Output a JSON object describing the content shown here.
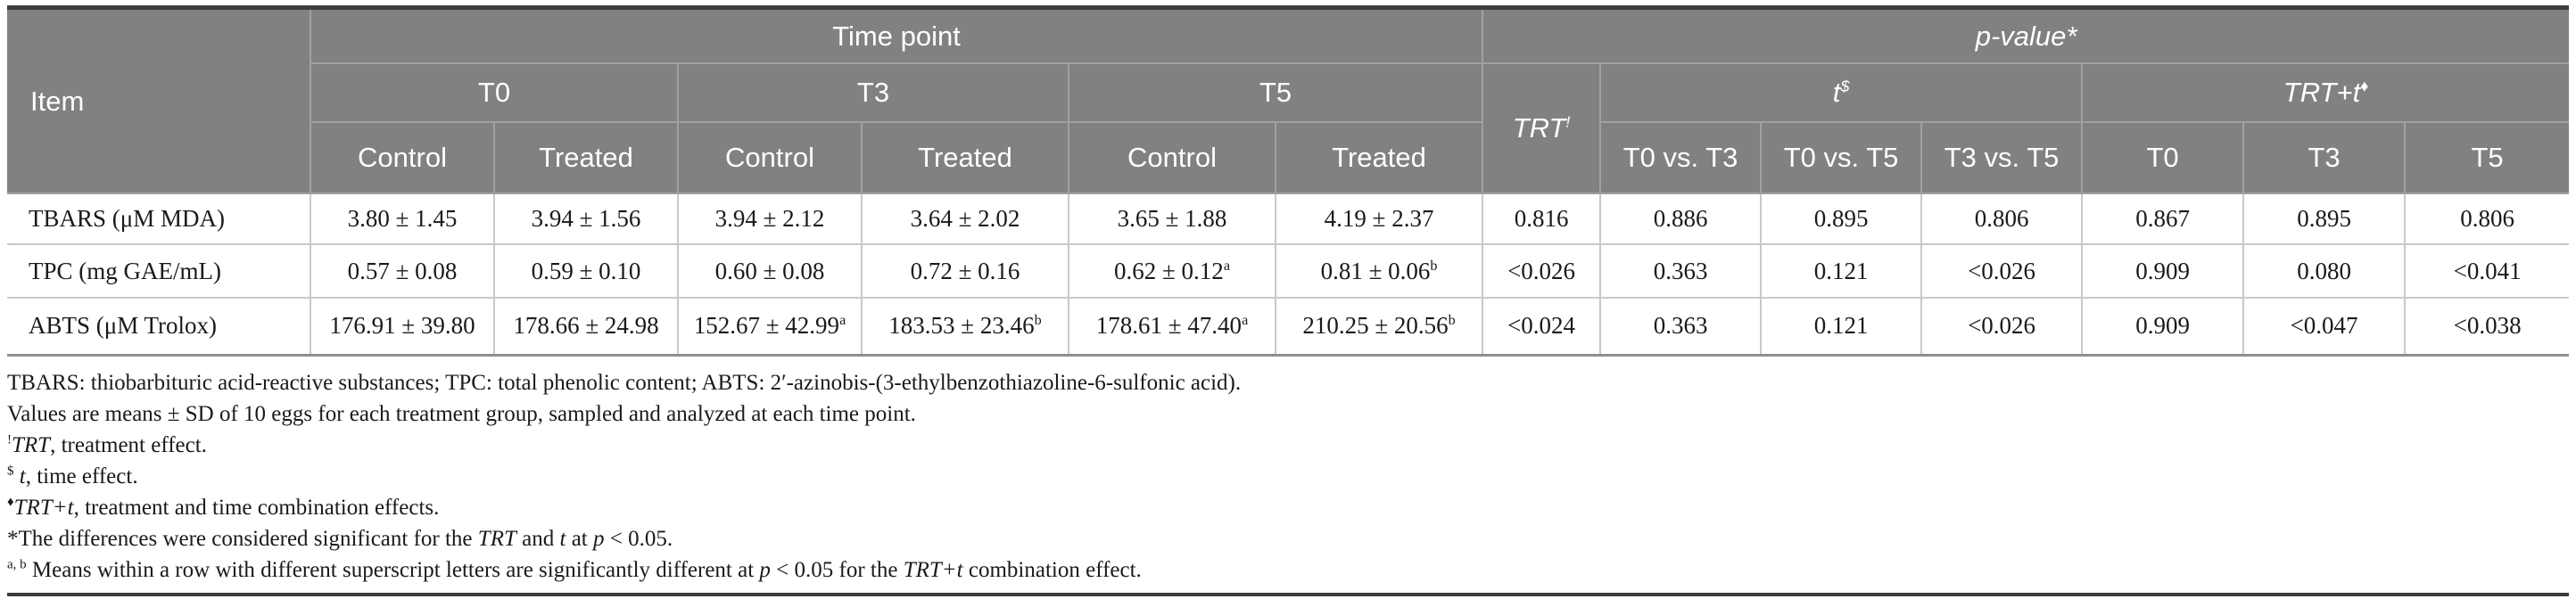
{
  "colors": {
    "header_bg": "#818181",
    "header_text": "#ffffff",
    "header_border": "#a1a1a1",
    "body_border": "#c9c9c9",
    "body_text": "#1a1a1a",
    "rule_dark": "#3c3c3c",
    "table_bottom": "#8f8f8f",
    "page_bg": "#ffffff"
  },
  "header": {
    "item": "Item",
    "time_point": "Time point",
    "p_value": {
      "text": "p-value",
      "sup": "*"
    },
    "t0": "T0",
    "t3": "T3",
    "t5": "T5",
    "control": "Control",
    "treated": "Treated",
    "trt": {
      "text": "TRT",
      "sup": "!"
    },
    "t": {
      "text": "t",
      "sup": "$"
    },
    "trt_t": {
      "text": "TRT+t",
      "sup": "♦"
    },
    "comparisons": [
      "T0 vs. T3",
      "T0 vs. T5",
      "T3 vs. T5"
    ],
    "combo_cols": [
      "T0",
      "T3",
      "T5"
    ]
  },
  "rows": [
    {
      "item": "TBARS (μM MDA)",
      "values": [
        {
          "v": "3.80 ± 1.45",
          "sup": ""
        },
        {
          "v": "3.94 ± 1.56",
          "sup": ""
        },
        {
          "v": "3.94 ± 2.12",
          "sup": ""
        },
        {
          "v": "3.64 ± 2.02",
          "sup": ""
        },
        {
          "v": "3.65 ± 1.88",
          "sup": ""
        },
        {
          "v": "4.19 ± 2.37",
          "sup": ""
        }
      ],
      "p": [
        "0.816",
        "0.886",
        "0.895",
        "0.806",
        "0.867",
        "0.895",
        "0.806"
      ]
    },
    {
      "item": "TPC (mg GAE/mL)",
      "values": [
        {
          "v": "0.57 ± 0.08",
          "sup": ""
        },
        {
          "v": "0.59 ± 0.10",
          "sup": ""
        },
        {
          "v": "0.60 ± 0.08",
          "sup": ""
        },
        {
          "v": "0.72 ± 0.16",
          "sup": ""
        },
        {
          "v": "0.62 ± 0.12",
          "sup": "a"
        },
        {
          "v": "0.81 ± 0.06",
          "sup": "b"
        }
      ],
      "p": [
        "<0.026",
        "0.363",
        "0.121",
        "<0.026",
        "0.909",
        "0.080",
        "<0.041"
      ]
    },
    {
      "item": "ABTS (μM Trolox)",
      "values": [
        {
          "v": "176.91 ± 39.80",
          "sup": ""
        },
        {
          "v": "178.66 ± 24.98",
          "sup": ""
        },
        {
          "v": "152.67 ± 42.99",
          "sup": "a"
        },
        {
          "v": "183.53 ± 23.46",
          "sup": "b"
        },
        {
          "v": "178.61 ± 47.40",
          "sup": "a"
        },
        {
          "v": "210.25 ± 20.56",
          "sup": "b"
        }
      ],
      "p": [
        "<0.024",
        "0.363",
        "0.121",
        "<0.026",
        "0.909",
        "<0.047",
        "<0.038"
      ]
    }
  ],
  "footnotes": [
    {
      "segments": [
        {
          "style": "n",
          "t": "TBARS: thiobarbituric acid-reactive substances; TPC: total phenolic content; ABTS: 2′-azinobis-(3-ethylbenzothiazoline-6-sulfonic acid)."
        }
      ]
    },
    {
      "segments": [
        {
          "style": "n",
          "t": "Values are means ± SD of 10 eggs for each treatment group, sampled and analyzed at each time point."
        }
      ]
    },
    {
      "segments": [
        {
          "style": "s",
          "t": "!"
        },
        {
          "style": "i",
          "t": "TRT"
        },
        {
          "style": "n",
          "t": ", treatment effect."
        }
      ]
    },
    {
      "segments": [
        {
          "style": "s",
          "t": "$"
        },
        {
          "style": "n",
          "t": " "
        },
        {
          "style": "i",
          "t": "t"
        },
        {
          "style": "n",
          "t": ", time effect."
        }
      ]
    },
    {
      "segments": [
        {
          "style": "s",
          "t": "♦"
        },
        {
          "style": "i",
          "t": "TRT+t"
        },
        {
          "style": "n",
          "t": ", treatment and time combination effects."
        }
      ]
    },
    {
      "segments": [
        {
          "style": "n",
          "t": "*The differences were considered significant for the "
        },
        {
          "style": "i",
          "t": "TRT"
        },
        {
          "style": "n",
          "t": " and "
        },
        {
          "style": "i",
          "t": "t"
        },
        {
          "style": "n",
          "t": " at "
        },
        {
          "style": "i",
          "t": "p"
        },
        {
          "style": "n",
          "t": " < 0.05."
        }
      ]
    },
    {
      "segments": [
        {
          "style": "s",
          "t": "a, b"
        },
        {
          "style": "n",
          "t": " Means within a row with different superscript letters are significantly different at "
        },
        {
          "style": "i",
          "t": "p"
        },
        {
          "style": "n",
          "t": " < 0.05 for the "
        },
        {
          "style": "i",
          "t": "TRT+t"
        },
        {
          "style": "n",
          "t": " combination effect."
        }
      ]
    }
  ]
}
